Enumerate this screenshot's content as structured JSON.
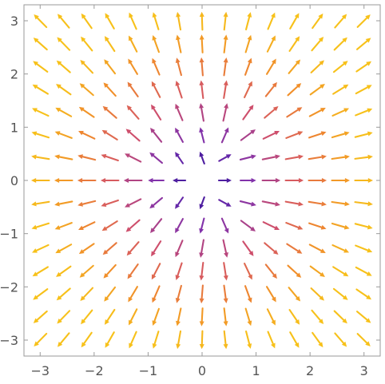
{
  "chart_data": {
    "type": "vector_field",
    "title": "",
    "xlabel": "",
    "ylabel": "",
    "field": "radial vector field with 3-fold symmetry (cubic-like); arrows point outward",
    "xlim": [
      -3.3,
      3.3
    ],
    "ylim": [
      -3.3,
      3.3
    ],
    "grid": false,
    "legend": "none",
    "xticks": [
      -3,
      -2,
      -1,
      0,
      1,
      2,
      3
    ],
    "yticks": [
      -3,
      -2,
      -1,
      0,
      1,
      2,
      3
    ],
    "xtick_labels": [
      "−3",
      "−2",
      "−1",
      "0",
      "1",
      "2",
      "3"
    ],
    "ytick_labels": [
      "−3",
      "−2",
      "−1",
      "0",
      "1",
      "2",
      "3"
    ],
    "arrow_grid": {
      "min": -3.0,
      "max": 3.0,
      "count": 15
    },
    "color_scale": [
      "#1a0a8c",
      "#7a2fb0",
      "#d1506a",
      "#f08a2c",
      "#f7c11a"
    ],
    "colors": {
      "frame": "#9a9a9a",
      "ticks_text": "#555555",
      "background": "#ffffff"
    }
  }
}
